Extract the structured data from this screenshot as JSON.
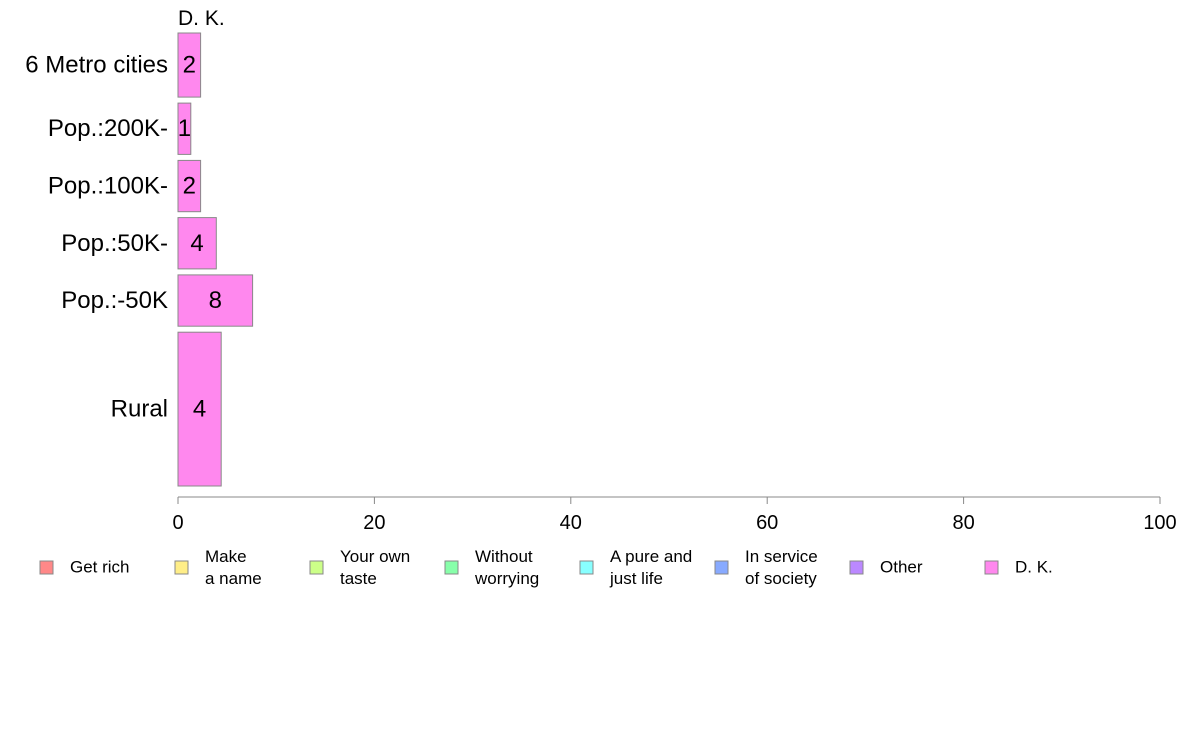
{
  "chart_data": {
    "type": "bar",
    "orientation": "horizontal",
    "panel_title": "D. K.",
    "categories": [
      "6 Metro cities",
      "Pop.:200K-",
      "Pop.:100K-",
      "Pop.:50K-",
      "Pop.:-50K",
      "Rural"
    ],
    "series": [
      {
        "name": "D. K.",
        "values": [
          2,
          1,
          2,
          4,
          8,
          4
        ],
        "labels": [
          "2",
          "1",
          "2",
          "4",
          "8",
          "4"
        ],
        "color": "#FF88EE"
      }
    ],
    "bar_values_precise": [
      2.3,
      1.3,
      2.3,
      3.9,
      7.6,
      4.4
    ],
    "category_weights": [
      1.0,
      0.8,
      0.8,
      0.8,
      0.8,
      2.4
    ],
    "xlim": [
      0,
      100
    ],
    "xticks": [
      "0",
      "20",
      "40",
      "60",
      "80",
      "100"
    ],
    "xtick_values": [
      0,
      20,
      40,
      60,
      80,
      100
    ],
    "grid": false,
    "legend_position": "bottom",
    "legend": [
      {
        "lines": [
          "Get rich"
        ],
        "color": "#FF8888"
      },
      {
        "lines": [
          "Make",
          "a name"
        ],
        "color": "#FFEE88"
      },
      {
        "lines": [
          "Your own",
          "taste"
        ],
        "color": "#CCFF88"
      },
      {
        "lines": [
          "Without",
          "worrying"
        ],
        "color": "#88FFAA"
      },
      {
        "lines": [
          "A pure and",
          "just life"
        ],
        "color": "#88FFFF"
      },
      {
        "lines": [
          "In service",
          "of society"
        ],
        "color": "#88AAFF"
      },
      {
        "lines": [
          "Other"
        ],
        "color": "#BB88FF"
      },
      {
        "lines": [
          "D. K."
        ],
        "color": "#FF88EE"
      }
    ]
  }
}
